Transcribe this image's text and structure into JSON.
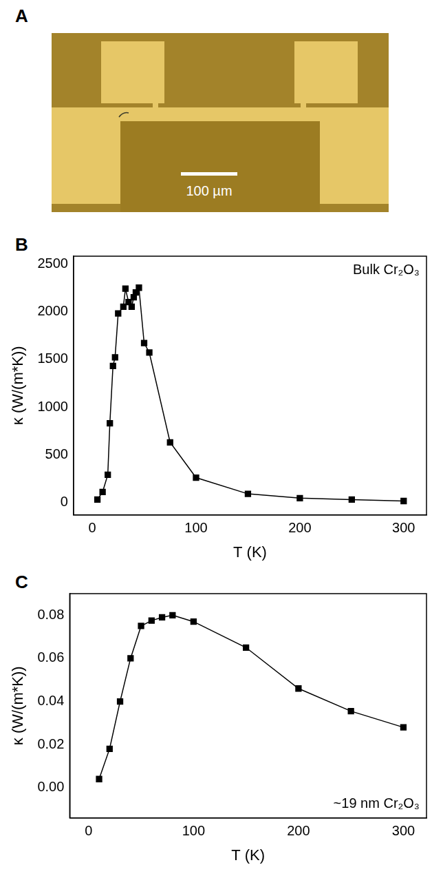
{
  "image": {
    "label": "A",
    "scale_bar": "100 µm"
  },
  "chart_data": [
    {
      "label": "B",
      "type": "line",
      "annotation": "Bulk Cr₂O₃",
      "x_label": "T (K)",
      "y_label": "κ (W/(m*K))",
      "x": [
        5,
        10,
        15,
        17,
        20,
        22,
        25,
        30,
        32,
        35,
        38,
        40,
        42,
        45,
        50,
        55,
        75,
        100,
        150,
        200,
        250,
        300
      ],
      "values": [
        30,
        110,
        290,
        830,
        1430,
        1520,
        1980,
        2050,
        2240,
        2100,
        2050,
        2150,
        2200,
        2250,
        1670,
        1570,
        630,
        260,
        90,
        45,
        30,
        15
      ],
      "color": "#000000",
      "marker": "square",
      "line_style": "solid",
      "xlim": [
        -18,
        322
      ],
      "xticks": [
        0,
        100,
        200,
        300
      ],
      "ylim": [
        -130,
        2580
      ],
      "yticks": [
        0,
        500,
        1000,
        1500,
        2000,
        2500
      ],
      "grid": false
    },
    {
      "label": "C",
      "type": "line",
      "annotation": "~19 nm Cr₂O₃",
      "x_label": "T (K)",
      "y_label": "κ (W/(m*K))",
      "x": [
        10,
        20,
        30,
        40,
        50,
        60,
        70,
        80,
        100,
        150,
        200,
        250,
        300
      ],
      "values": [
        0.004,
        0.018,
        0.04,
        0.06,
        0.075,
        0.0775,
        0.079,
        0.08,
        0.077,
        0.065,
        0.046,
        0.0355,
        0.028
      ],
      "color": "#000000",
      "marker": "square",
      "line_style": "solid",
      "xlim": [
        -18,
        322
      ],
      "xticks": [
        0,
        100,
        200,
        300
      ],
      "ylim": [
        -0.014,
        0.09
      ],
      "yticks": [
        {
          "value": 0,
          "label": "0.00"
        },
        {
          "value": 0.02,
          "label": "0.02"
        },
        {
          "value": 0.04,
          "label": "0.04"
        },
        {
          "value": 0.06,
          "label": "0.06"
        },
        {
          "value": 0.08,
          "label": "0.08"
        }
      ],
      "grid": false
    }
  ]
}
